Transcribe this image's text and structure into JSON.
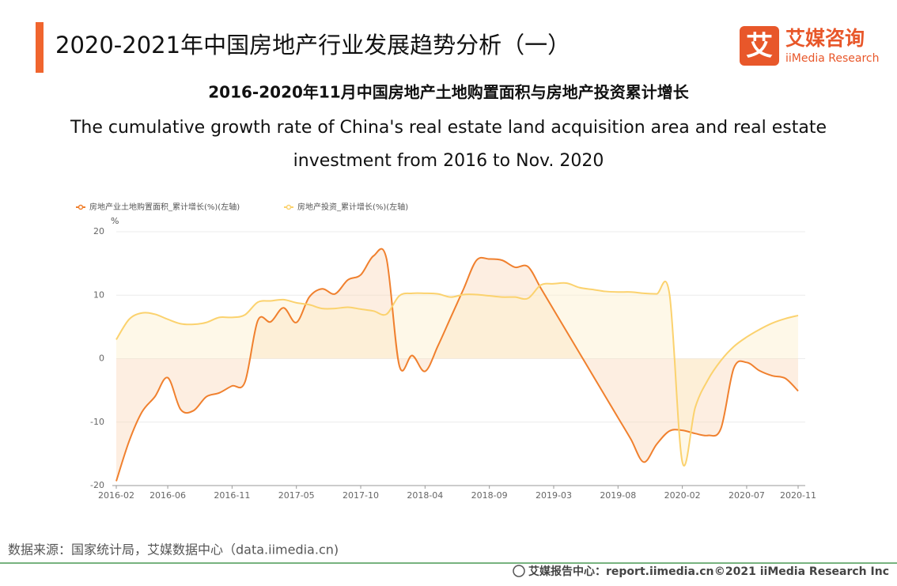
{
  "header": {
    "title": "2020-2021年中国房地产行业发展趋势分析（一）",
    "logo_cn": "艾媒咨询",
    "logo_en": "iiMedia Research",
    "logo_icon": "艾"
  },
  "chart_data": {
    "type": "line",
    "title": "2016-2020年11月中国房地产土地购置面积与房地产投资累计增长",
    "subtitle": [
      "The cumulative growth rate of China's real estate land acquisition area and real estate",
      "investment from 2016 to Nov. 2020"
    ],
    "y_axis_label": "%",
    "categories": [
      "2016-02",
      null,
      null,
      null,
      "2016-06",
      null,
      null,
      null,
      null,
      "2016-11",
      null,
      null,
      null,
      null,
      "2017-05",
      null,
      null,
      null,
      null,
      "2017-10",
      null,
      null,
      null,
      null,
      "2018-04",
      null,
      null,
      null,
      null,
      "2018-09",
      null,
      null,
      null,
      null,
      "2019-03",
      null,
      null,
      null,
      null,
      "2019-08",
      null,
      null,
      null,
      null,
      "2020-02",
      null,
      null,
      null,
      null,
      "2020-07",
      null,
      null,
      null,
      "2020-11"
    ],
    "series": [
      {
        "name": "房地产业土地购置面积_累计增长(%)(左轴)",
        "color": "#f0802e",
        "fill": "#fbd9bd",
        "values": [
          -19.3,
          -13,
          -8.4,
          -6,
          -3,
          -8,
          -8.2,
          -6,
          -5.4,
          -4.3,
          -3.7,
          6,
          5.8,
          8,
          5.7,
          9.7,
          11,
          10.2,
          12.4,
          13.2,
          16.2,
          15.8,
          -1.1,
          0.5,
          -2,
          2,
          6.5,
          11,
          15.5,
          15.7,
          15.5,
          14.4,
          14.5,
          11.1,
          7.7,
          4.3,
          0.9,
          -2.5,
          -5.9,
          -9.3,
          -12.7,
          -16.3,
          -13.5,
          -11.4,
          -11.3,
          -11.8,
          -12.1,
          -11,
          -1.5,
          -0.6,
          -1.9,
          -2.7,
          -3.1,
          -5.1
        ]
      },
      {
        "name": "房地产投资_累计增长(%)(左轴)",
        "color": "#fbd26e",
        "fill": "#fdf0cc",
        "values": [
          3,
          6.2,
          7.2,
          7,
          6.2,
          5.5,
          5.4,
          5.7,
          6.5,
          6.5,
          6.9,
          8.9,
          9.1,
          9.3,
          8.8,
          8.5,
          7.9,
          7.9,
          8.1,
          7.8,
          7.5,
          7,
          9.9,
          10.3,
          10.3,
          10.2,
          9.7,
          10.1,
          10.1,
          9.9,
          9.7,
          9.7,
          9.5,
          11.6,
          11.8,
          11.9,
          11.2,
          10.9,
          10.6,
          10.5,
          10.5,
          10.3,
          10.2,
          10.2,
          -16.3,
          -7.7,
          -3.3,
          -0.3,
          1.9,
          3.4,
          4.6,
          5.6,
          6.3,
          6.8
        ]
      }
    ],
    "ylim": [
      -20,
      20
    ],
    "yticks": [
      -20,
      -10,
      0,
      10,
      20
    ],
    "grid": true,
    "legend": "top-left"
  },
  "footer": {
    "source": "数据来源：国家统计局，艾媒数据中心（data.iimedia.cn)",
    "report": "艾媒报告中心：report.iimedia.cn",
    "copyright": "©2021  iiMedia Research  Inc"
  }
}
